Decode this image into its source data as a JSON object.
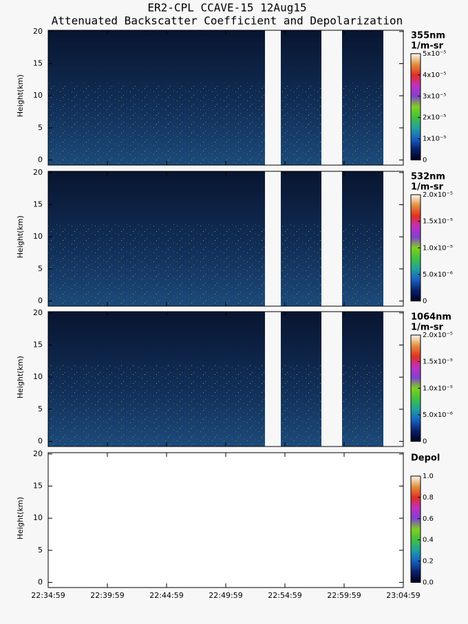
{
  "chart_data": {
    "type": "curtain",
    "title": [
      "ER2-CPL CCAVE-15 12Aug15",
      "Attenuated Backscatter Coefficient and Depolarization"
    ],
    "xticks": [
      "22:34:59",
      "22:39:59",
      "22:44:59",
      "22:49:59",
      "22:54:59",
      "22:59:59",
      "23:04:59"
    ],
    "panels": [
      {
        "label": [
          "355nm",
          "1/m-sr"
        ],
        "ylabel": "Height(km)",
        "ylim": [
          -0.8,
          20.2
        ],
        "yticks": [
          0,
          5,
          10,
          15,
          20
        ],
        "clim": [
          0,
          5e-05
        ],
        "cticks": [
          0,
          {
            "value": 1e-05,
            "label": "1x10⁻⁵"
          },
          {
            "value": 2e-05,
            "label": "2x10⁻⁵"
          },
          {
            "value": 3e-05,
            "label": "3x10⁻⁵"
          },
          {
            "value": 4e-05,
            "label": "4x10⁻⁵"
          },
          {
            "value": 5e-05,
            "label": "5x10⁻⁵"
          }
        ]
      },
      {
        "label": [
          "532nm",
          "1/m-sr"
        ],
        "ylabel": "Height(km)",
        "ylim": [
          -0.8,
          20.2
        ],
        "yticks": [
          0,
          5,
          10,
          15,
          20
        ],
        "clim": [
          0,
          2e-05
        ],
        "cticks": [
          0,
          {
            "value": 5e-06,
            "label": "5.0x10⁻⁶"
          },
          {
            "value": 1e-05,
            "label": "1.0x10⁻⁵"
          },
          {
            "value": 1.5e-05,
            "label": "1.5x10⁻⁵"
          },
          {
            "value": 2e-05,
            "label": "2.0x10⁻⁵"
          }
        ]
      },
      {
        "label": [
          "1064nm",
          "1/m-sr"
        ],
        "ylabel": "Height(km)",
        "ylim": [
          -0.8,
          20.2
        ],
        "yticks": [
          0,
          5,
          10,
          15,
          20
        ],
        "clim": [
          0,
          2e-05
        ],
        "cticks": [
          0,
          {
            "value": 5e-06,
            "label": "5.0x10⁻⁶"
          },
          {
            "value": 1e-05,
            "label": "1.0x10⁻⁵"
          },
          {
            "value": 1.5e-05,
            "label": "1.5x10⁻⁵"
          },
          {
            "value": 2e-05,
            "label": "2.0x10⁻⁵"
          }
        ]
      },
      {
        "label": [
          "Depol"
        ],
        "ylabel": "Height(km)",
        "ylim": [
          -0.8,
          20.2
        ],
        "yticks": [
          0,
          5,
          10,
          15,
          20
        ],
        "clim": [
          0,
          1
        ],
        "cticks": [
          {
            "value": 0,
            "label": "0.0"
          },
          {
            "value": 0.2,
            "label": "0.2"
          },
          {
            "value": 0.4,
            "label": "0.4"
          },
          {
            "value": 0.6,
            "label": "0.6"
          },
          {
            "value": 0.8,
            "label": "0.8"
          },
          {
            "value": 1,
            "label": "1.0"
          }
        ]
      }
    ]
  }
}
